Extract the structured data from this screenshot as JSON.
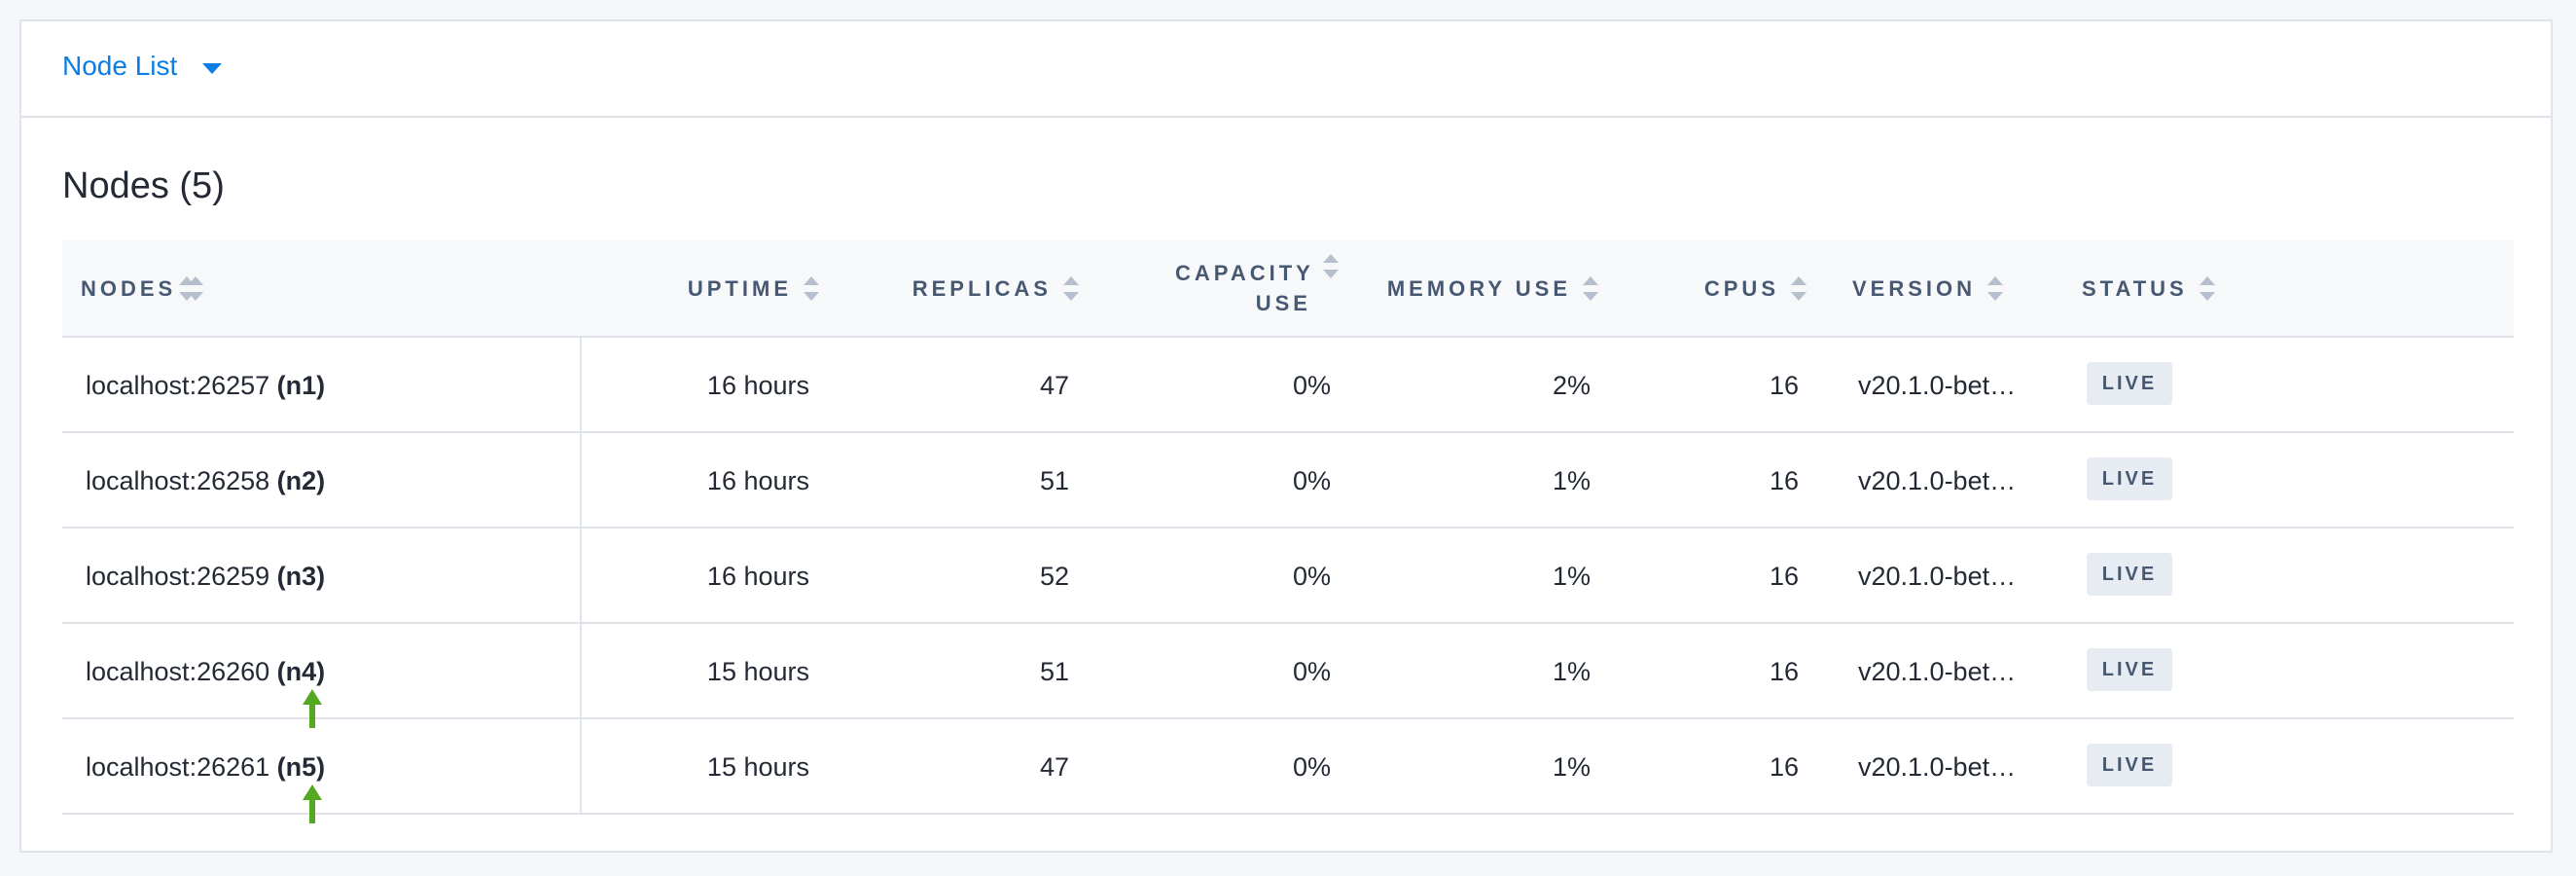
{
  "header": {
    "title": "Node List"
  },
  "section": {
    "title": "Nodes (5)"
  },
  "table": {
    "columns": [
      "NODES",
      "UPTIME",
      "REPLICAS",
      "CAPACITY USE",
      "MEMORY USE",
      "CPUS",
      "VERSION",
      "STATUS"
    ],
    "rows": [
      {
        "address": "localhost:26257",
        "id": "(n1)",
        "uptime": "16 hours",
        "replicas": "47",
        "capacity": "0%",
        "memory": "2%",
        "cpus": "16",
        "version": "v20.1.0-bet…",
        "status": "LIVE"
      },
      {
        "address": "localhost:26258",
        "id": "(n2)",
        "uptime": "16 hours",
        "replicas": "51",
        "capacity": "0%",
        "memory": "1%",
        "cpus": "16",
        "version": "v20.1.0-bet…",
        "status": "LIVE"
      },
      {
        "address": "localhost:26259",
        "id": "(n3)",
        "uptime": "16 hours",
        "replicas": "52",
        "capacity": "0%",
        "memory": "1%",
        "cpus": "16",
        "version": "v20.1.0-bet…",
        "status": "LIVE"
      },
      {
        "address": "localhost:26260",
        "id": "(n4)",
        "uptime": "15 hours",
        "replicas": "51",
        "capacity": "0%",
        "memory": "1%",
        "cpus": "16",
        "version": "v20.1.0-bet…",
        "status": "LIVE"
      },
      {
        "address": "localhost:26261",
        "id": "(n5)",
        "uptime": "15 hours",
        "replicas": "47",
        "capacity": "0%",
        "memory": "1%",
        "cpus": "16",
        "version": "v20.1.0-bet…",
        "status": "LIVE"
      }
    ]
  }
}
